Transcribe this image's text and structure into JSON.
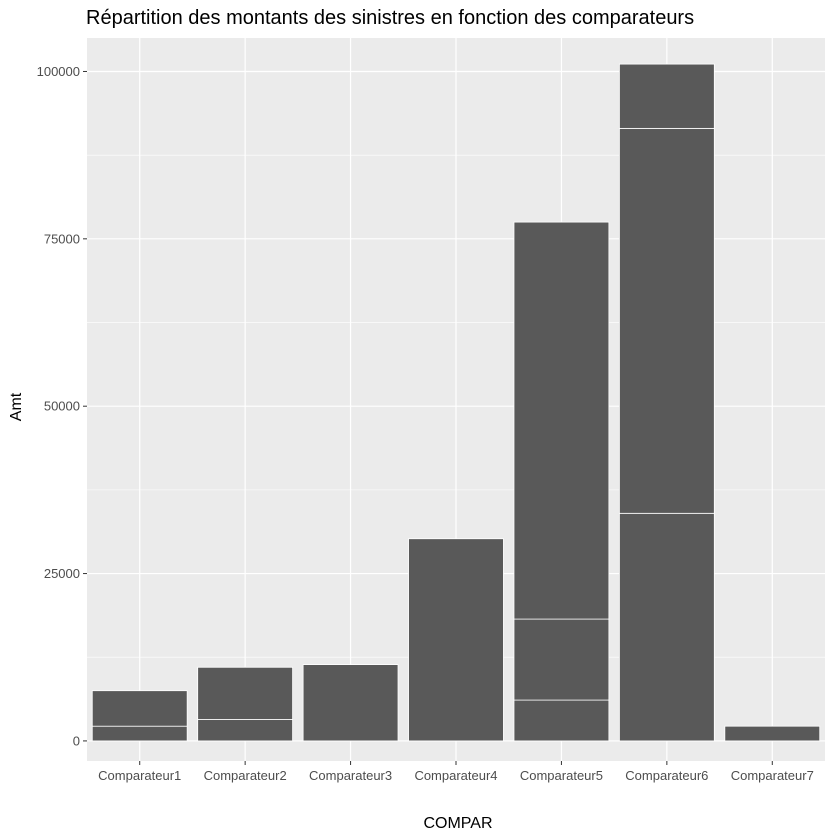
{
  "chart_data": {
    "type": "bar",
    "stacked": true,
    "title": "Répartition des montants des sinistres en fonction des comparateurs",
    "xlabel": "COMPAR",
    "ylabel": "Amt",
    "ylim": [
      -3000,
      105000
    ],
    "yticks": [
      0,
      25000,
      50000,
      75000,
      100000
    ],
    "ytick_labels": [
      "0",
      "25000",
      "50000",
      "75000",
      "100000"
    ],
    "grid": true,
    "legend": "none",
    "colors": {
      "panel": "#ebebeb",
      "bar": "#595959",
      "segment_border": "#ffffff",
      "grid": "#ffffff",
      "tick_text": "#4d4d4d"
    },
    "categories": [
      "Comparateur1",
      "Comparateur2",
      "Comparateur3",
      "Comparateur4",
      "Comparateur5",
      "Comparateur6",
      "Comparateur7"
    ],
    "segments": [
      [
        2200,
        5300
      ],
      [
        3200,
        7800
      ],
      [
        11400
      ],
      [
        30200
      ],
      [
        6100,
        12100,
        59300
      ],
      [
        34000,
        57500,
        9600
      ],
      [
        2200
      ]
    ],
    "totals": [
      7500,
      11000,
      11400,
      30200,
      77500,
      101100,
      2200
    ]
  }
}
